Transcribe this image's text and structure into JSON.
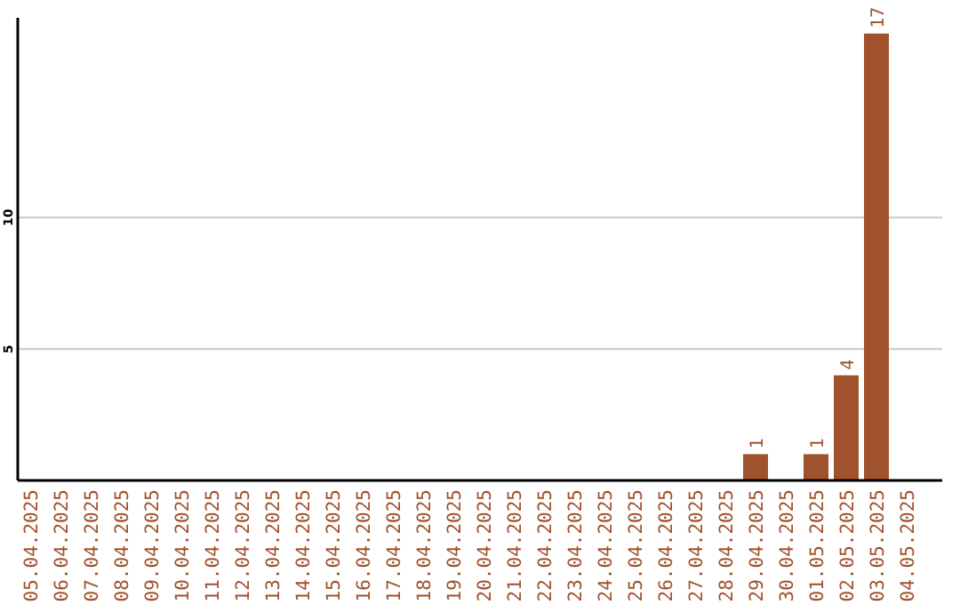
{
  "chart_data": {
    "type": "bar",
    "categories": [
      "05.04.2025",
      "06.04.2025",
      "07.04.2025",
      "08.04.2025",
      "09.04.2025",
      "10.04.2025",
      "11.04.2025",
      "12.04.2025",
      "13.04.2025",
      "14.04.2025",
      "15.04.2025",
      "16.04.2025",
      "17.04.2025",
      "18.04.2025",
      "19.04.2025",
      "20.04.2025",
      "21.04.2025",
      "22.04.2025",
      "23.04.2025",
      "24.04.2025",
      "25.04.2025",
      "26.04.2025",
      "27.04.2025",
      "28.04.2025",
      "29.04.2025",
      "30.04.2025",
      "01.05.2025",
      "02.05.2025",
      "03.05.2025",
      "04.05.2025"
    ],
    "values": [
      null,
      null,
      null,
      null,
      null,
      null,
      null,
      null,
      null,
      null,
      null,
      null,
      null,
      null,
      null,
      null,
      null,
      null,
      null,
      null,
      null,
      null,
      null,
      null,
      1,
      null,
      1,
      4,
      17,
      null
    ],
    "color": "#a0522d",
    "ylim": [
      0,
      17.6
    ],
    "yticks": [
      5,
      10
    ],
    "grid": "y",
    "data_labels": true
  }
}
